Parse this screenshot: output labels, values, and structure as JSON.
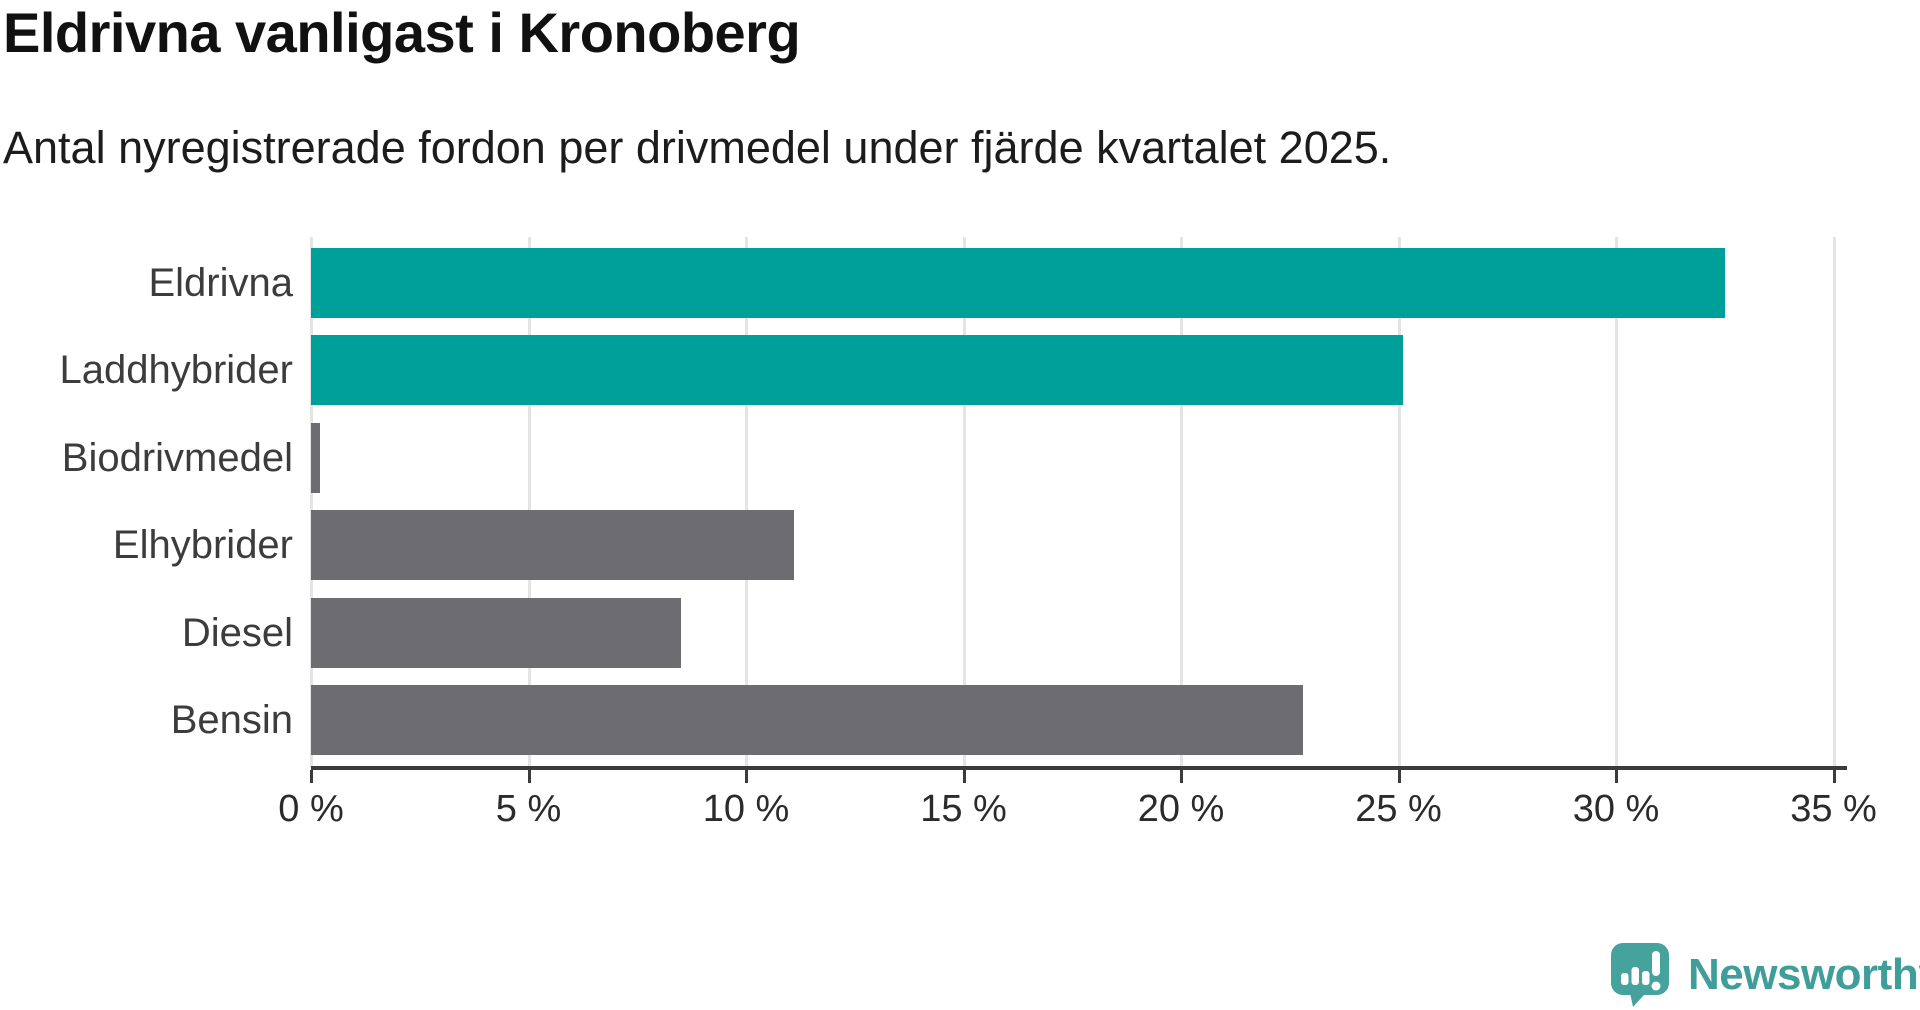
{
  "chart_data": {
    "type": "bar",
    "orientation": "horizontal",
    "title": "Eldrivna vanligast i Kronoberg",
    "subtitle": "Antal nyregistrerade fordon per drivmedel under fjärde kvartalet 2025.",
    "categories": [
      "Eldrivna",
      "Laddhybrider",
      "Biodrivmedel",
      "Elhybrider",
      "Diesel",
      "Bensin"
    ],
    "values": [
      32.5,
      25.1,
      0.2,
      11.1,
      8.5,
      22.8
    ],
    "unit": "%",
    "color_keys": [
      "accent",
      "accent",
      "default",
      "default",
      "default",
      "default"
    ],
    "accent_color": "#00a09a",
    "default_color": "#6c6c71",
    "xlim": [
      0,
      35
    ],
    "x_ticks": [
      0,
      5,
      10,
      15,
      20,
      25,
      30,
      35
    ],
    "x_tick_labels": [
      "0 %",
      "5 %",
      "10 %",
      "15 %",
      "20 %",
      "25 %",
      "30 %",
      "35 %"
    ],
    "grid": "vertical",
    "legend": "none"
  },
  "branding": {
    "wordmark": "Newsworthy",
    "logo_color": "#45a29c",
    "wordmark_color": "#3f9e99"
  }
}
